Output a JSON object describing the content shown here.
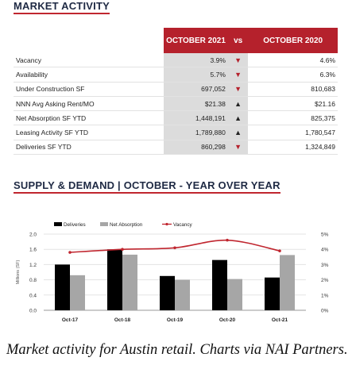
{
  "market_activity": {
    "title": "MARKET ACTIVITY",
    "col1": "OCTOBER 2021",
    "vs": "vs",
    "col2": "OCTOBER 2020",
    "rows": [
      {
        "label": "Vacancy",
        "v2021": "3.9%",
        "trend": "down",
        "v2020": "4.6%"
      },
      {
        "label": "Availability",
        "v2021": "5.7%",
        "trend": "down",
        "v2020": "6.3%"
      },
      {
        "label": "Under Construction SF",
        "v2021": "697,052",
        "trend": "down",
        "v2020": "810,683"
      },
      {
        "label": "NNN Avg Asking Rent/MO",
        "v2021": "$21.38",
        "trend": "up",
        "v2020": "$21.16"
      },
      {
        "label": "Net Absorption SF YTD",
        "v2021": "1,448,191",
        "trend": "up",
        "v2020": "825,375"
      },
      {
        "label": "Leasing Activity SF YTD",
        "v2021": "1,789,880",
        "trend": "up",
        "v2020": "1,780,547"
      },
      {
        "label": "Deliveries SF YTD",
        "v2021": "860,298",
        "trend": "down",
        "v2020": "1,324,849"
      }
    ]
  },
  "supply_demand_title": "SUPPLY & DEMAND | OCTOBER - YEAR OVER YEAR",
  "caption": "Market activity for Austin retail. Charts via NAI Partners.",
  "colors": {
    "deliveries": "#000000",
    "net_absorption": "#a6a6a6",
    "vacancy": "#c0262f"
  },
  "chart_data": {
    "type": "bar",
    "categories": [
      "Oct-17",
      "Oct-18",
      "Oct-19",
      "Oct-20",
      "Oct-21"
    ],
    "series": [
      {
        "name": "Deliveries",
        "type": "bar",
        "axis": "left",
        "values": [
          1.2,
          1.6,
          0.9,
          1.32,
          0.86
        ]
      },
      {
        "name": "Net Absorption",
        "type": "bar",
        "axis": "left",
        "values": [
          0.92,
          1.46,
          0.8,
          0.82,
          1.45
        ]
      },
      {
        "name": "Vacancy",
        "type": "line",
        "axis": "right",
        "values": [
          3.8,
          4.0,
          4.1,
          4.6,
          3.9
        ]
      }
    ],
    "ylabel": "Millions (SF)",
    "ylim": [
      0,
      2.0
    ],
    "yticks": [
      "0.0",
      "0.4",
      "0.8",
      "1.2",
      "1.6",
      "2.0"
    ],
    "y2lim": [
      0,
      5
    ],
    "y2ticks": [
      "0%",
      "1%",
      "2%",
      "3%",
      "4%",
      "5%"
    ],
    "legend": "top",
    "grid": true
  }
}
